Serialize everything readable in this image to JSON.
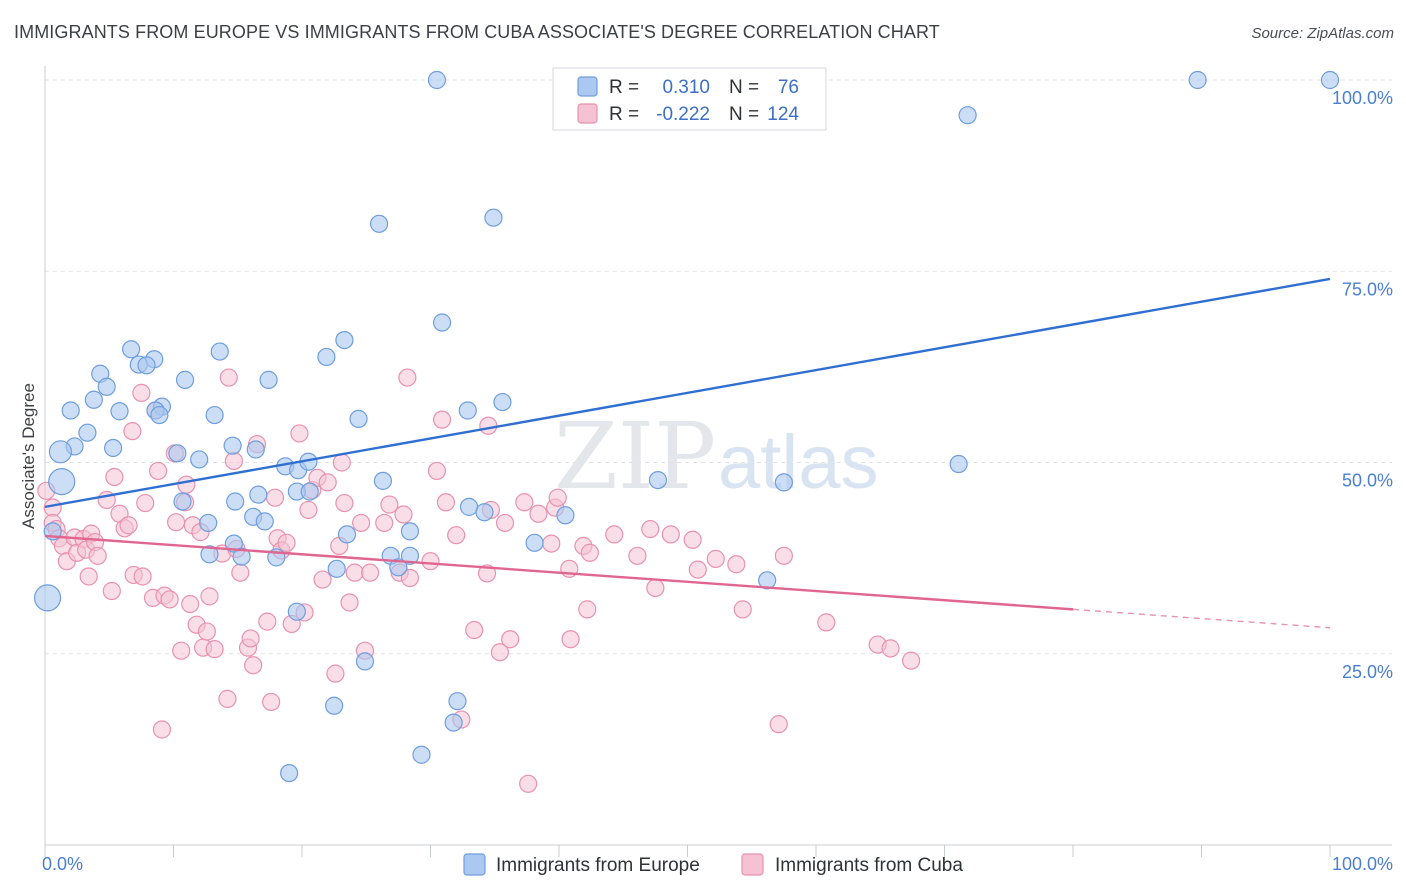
{
  "header": {
    "title": "IMMIGRANTS FROM EUROPE VS IMMIGRANTS FROM CUBA ASSOCIATE'S DEGREE CORRELATION CHART",
    "source": "Source: ZipAtlas.com"
  },
  "watermark": {
    "zip": "ZIP",
    "atlas": "atlas"
  },
  "legend": {
    "europe": {
      "r_label": "R =",
      "r_value": "0.310",
      "n_label": "N =",
      "n_value": "76"
    },
    "cuba": {
      "r_label": "R =",
      "r_value": "-0.222",
      "n_label": "N =",
      "n_value": "124"
    }
  },
  "chart_data": {
    "type": "scatter",
    "title": "IMMIGRANTS FROM EUROPE VS IMMIGRANTS FROM CUBA ASSOCIATE'S DEGREE CORRELATION CHART",
    "xlabel": "",
    "ylabel": "Associate's Degree",
    "xlim": [
      0,
      100
    ],
    "ylim": [
      0,
      102
    ],
    "x_tick_labels": [
      "0.0%",
      "100.0%"
    ],
    "y_tick_labels": [
      "25.0%",
      "50.0%",
      "75.0%",
      "100.0%"
    ],
    "y_ticks": [
      25,
      50,
      75,
      100
    ],
    "grid": true,
    "legend_position": "top-center",
    "series": [
      {
        "name": "Immigrants from Europe",
        "color": "#6f9ede",
        "fill": "#aac8f0",
        "trend": {
          "x": [
            0,
            100
          ],
          "y": [
            44.2,
            74.0
          ]
        },
        "points": [
          [
            30.5,
            100
          ],
          [
            89.7,
            100
          ],
          [
            100,
            100
          ],
          [
            71.8,
            95.4
          ],
          [
            26.0,
            81.2
          ],
          [
            34.9,
            82.0
          ],
          [
            30.9,
            68.3
          ],
          [
            23.3,
            66.0
          ],
          [
            6.7,
            64.8
          ],
          [
            13.6,
            64.5
          ],
          [
            21.9,
            63.8
          ],
          [
            8.5,
            63.5
          ],
          [
            7.3,
            62.8
          ],
          [
            7.9,
            62.7
          ],
          [
            4.3,
            61.6
          ],
          [
            10.9,
            60.8
          ],
          [
            17.4,
            60.8
          ],
          [
            4.8,
            59.9
          ],
          [
            3.8,
            58.2
          ],
          [
            35.6,
            57.9
          ],
          [
            9.1,
            57.3
          ],
          [
            2.0,
            56.8
          ],
          [
            5.8,
            56.7
          ],
          [
            8.6,
            56.8
          ],
          [
            32.9,
            56.8
          ],
          [
            13.2,
            56.2
          ],
          [
            24.4,
            55.7
          ],
          [
            8.9,
            56.2
          ],
          [
            3.3,
            53.9
          ],
          [
            2.3,
            52.1
          ],
          [
            1.2,
            51.4
          ],
          [
            14.6,
            52.2
          ],
          [
            5.3,
            51.9
          ],
          [
            10.3,
            51.2
          ],
          [
            12.0,
            50.4
          ],
          [
            16.4,
            51.7
          ],
          [
            18.7,
            49.5
          ],
          [
            19.7,
            49.0
          ],
          [
            71.1,
            49.8
          ],
          [
            20.5,
            50.1
          ],
          [
            26.3,
            47.6
          ],
          [
            47.7,
            47.7
          ],
          [
            57.5,
            47.4
          ],
          [
            1.3,
            47.5
          ],
          [
            19.6,
            46.2
          ],
          [
            20.6,
            46.2
          ],
          [
            16.6,
            45.8
          ],
          [
            10.7,
            44.9
          ],
          [
            14.8,
            44.9
          ],
          [
            33.0,
            44.2
          ],
          [
            34.2,
            43.5
          ],
          [
            40.5,
            43.1
          ],
          [
            16.2,
            42.9
          ],
          [
            12.7,
            42.1
          ],
          [
            17.1,
            42.3
          ],
          [
            28.4,
            41.0
          ],
          [
            23.5,
            40.6
          ],
          [
            38.1,
            39.5
          ],
          [
            0.6,
            41.0
          ],
          [
            14.7,
            39.4
          ],
          [
            12.8,
            38.0
          ],
          [
            15.3,
            37.7
          ],
          [
            26.9,
            37.8
          ],
          [
            28.4,
            37.8
          ],
          [
            18.0,
            37.6
          ],
          [
            22.7,
            36.1
          ],
          [
            27.5,
            36.3
          ],
          [
            56.2,
            34.6
          ],
          [
            0.2,
            32.3
          ],
          [
            19.6,
            30.5
          ],
          [
            24.9,
            24.0
          ],
          [
            22.5,
            18.2
          ],
          [
            32.1,
            18.8
          ],
          [
            31.8,
            16.0
          ],
          [
            29.3,
            11.8
          ],
          [
            19.0,
            9.4
          ]
        ]
      },
      {
        "name": "Immigrants from Cuba",
        "color": "#e892ae",
        "fill": "#f4c2d3",
        "trend": {
          "x": [
            0,
            80
          ],
          "y": [
            40.4,
            30.8
          ]
        },
        "trend_dashed": {
          "x": [
            80,
            100
          ],
          "y": [
            30.8,
            28.4
          ]
        },
        "points": [
          [
            0.1,
            46.3
          ],
          [
            0.6,
            44.1
          ],
          [
            0.6,
            42.1
          ],
          [
            0.9,
            41.3
          ],
          [
            1.1,
            40.1
          ],
          [
            1.4,
            39.1
          ],
          [
            1.7,
            37.1
          ],
          [
            2.3,
            40.2
          ],
          [
            2.5,
            38.2
          ],
          [
            3.0,
            40.0
          ],
          [
            3.2,
            38.6
          ],
          [
            3.4,
            35.1
          ],
          [
            3.6,
            40.7
          ],
          [
            3.9,
            39.6
          ],
          [
            4.1,
            37.8
          ],
          [
            4.8,
            45.1
          ],
          [
            5.2,
            33.2
          ],
          [
            5.4,
            48.1
          ],
          [
            5.8,
            43.3
          ],
          [
            6.2,
            41.4
          ],
          [
            6.5,
            41.8
          ],
          [
            6.8,
            54.1
          ],
          [
            6.9,
            35.3
          ],
          [
            7.5,
            59.1
          ],
          [
            7.6,
            35.1
          ],
          [
            7.8,
            44.7
          ],
          [
            8.4,
            32.3
          ],
          [
            8.6,
            56.8
          ],
          [
            8.8,
            48.9
          ],
          [
            9.1,
            15.1
          ],
          [
            9.3,
            32.6
          ],
          [
            9.7,
            32.1
          ],
          [
            10.1,
            51.2
          ],
          [
            10.2,
            42.2
          ],
          [
            10.6,
            25.4
          ],
          [
            10.9,
            44.8
          ],
          [
            11.0,
            47.1
          ],
          [
            11.3,
            31.5
          ],
          [
            11.5,
            41.8
          ],
          [
            11.8,
            28.8
          ],
          [
            12.1,
            40.9
          ],
          [
            12.3,
            25.8
          ],
          [
            12.6,
            27.9
          ],
          [
            12.8,
            32.5
          ],
          [
            13.2,
            25.6
          ],
          [
            13.8,
            38.1
          ],
          [
            14.2,
            19.1
          ],
          [
            14.3,
            61.1
          ],
          [
            14.7,
            50.2
          ],
          [
            14.9,
            38.7
          ],
          [
            15.2,
            35.6
          ],
          [
            15.8,
            25.8
          ],
          [
            16.0,
            27.0
          ],
          [
            16.2,
            23.5
          ],
          [
            16.5,
            52.4
          ],
          [
            17.3,
            29.2
          ],
          [
            17.6,
            18.7
          ],
          [
            17.9,
            45.4
          ],
          [
            18.1,
            40.1
          ],
          [
            18.4,
            38.5
          ],
          [
            18.8,
            39.5
          ],
          [
            19.2,
            28.9
          ],
          [
            19.8,
            53.8
          ],
          [
            20.2,
            30.4
          ],
          [
            20.5,
            43.8
          ],
          [
            20.8,
            46.4
          ],
          [
            21.2,
            48.0
          ],
          [
            21.6,
            34.7
          ],
          [
            22.0,
            47.4
          ],
          [
            22.6,
            22.4
          ],
          [
            22.9,
            39.1
          ],
          [
            23.1,
            50.0
          ],
          [
            23.3,
            44.7
          ],
          [
            23.7,
            31.7
          ],
          [
            24.1,
            35.6
          ],
          [
            24.6,
            42.1
          ],
          [
            24.9,
            25.4
          ],
          [
            25.3,
            35.6
          ],
          [
            26.4,
            42.1
          ],
          [
            26.8,
            44.5
          ],
          [
            27.6,
            35.6
          ],
          [
            27.9,
            43.2
          ],
          [
            28.2,
            61.1
          ],
          [
            28.4,
            34.9
          ],
          [
            30.0,
            37.1
          ],
          [
            30.5,
            48.9
          ],
          [
            30.9,
            55.6
          ],
          [
            31.2,
            44.8
          ],
          [
            32.0,
            40.5
          ],
          [
            32.4,
            16.4
          ],
          [
            33.4,
            28.1
          ],
          [
            34.4,
            35.5
          ],
          [
            34.5,
            54.8
          ],
          [
            34.7,
            43.8
          ],
          [
            35.4,
            25.2
          ],
          [
            35.8,
            42.1
          ],
          [
            36.2,
            26.9
          ],
          [
            37.3,
            44.8
          ],
          [
            37.6,
            8.0
          ],
          [
            38.4,
            43.3
          ],
          [
            39.4,
            39.4
          ],
          [
            39.7,
            44.1
          ],
          [
            39.9,
            45.4
          ],
          [
            40.8,
            36.1
          ],
          [
            40.9,
            26.9
          ],
          [
            41.9,
            39.1
          ],
          [
            42.2,
            30.8
          ],
          [
            42.4,
            38.2
          ],
          [
            44.3,
            40.6
          ],
          [
            46.1,
            37.8
          ],
          [
            47.1,
            41.3
          ],
          [
            47.5,
            33.6
          ],
          [
            48.7,
            40.6
          ],
          [
            50.4,
            39.9
          ],
          [
            50.8,
            36.0
          ],
          [
            52.2,
            37.4
          ],
          [
            53.8,
            36.7
          ],
          [
            54.3,
            30.8
          ],
          [
            57.1,
            15.8
          ],
          [
            57.5,
            37.8
          ],
          [
            60.8,
            29.1
          ],
          [
            64.8,
            26.2
          ],
          [
            65.8,
            25.7
          ],
          [
            67.4,
            24.1
          ]
        ]
      }
    ]
  }
}
